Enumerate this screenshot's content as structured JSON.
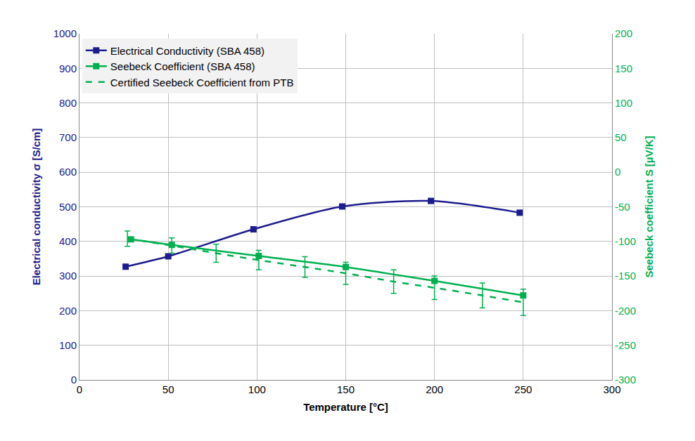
{
  "chart_data": {
    "type": "line",
    "x_label": "Temperature [°C]",
    "y_label": "Electrical conductivity σ [S/cm]",
    "y2_label": "Seebeck coefficient S [µV/K]",
    "xlim": [
      0,
      300
    ],
    "xticks": [
      0,
      50,
      100,
      150,
      200,
      250,
      300
    ],
    "ylim": [
      0,
      1000
    ],
    "yticks": [
      0,
      100,
      200,
      300,
      400,
      500,
      600,
      700,
      800,
      900,
      1000
    ],
    "y2lim": [
      -300,
      200
    ],
    "y2ticks": [
      -300,
      -250,
      -200,
      -150,
      -100,
      -50,
      0,
      50,
      100,
      150,
      200
    ],
    "grid": true,
    "legend": "upper left",
    "series": [
      {
        "name": "Electrical Conductivity (SBA 458)",
        "color": "#1c1c8c",
        "marker": "square",
        "line_style": "solid",
        "x": [
          26,
          50,
          98,
          148,
          198,
          248
        ],
        "values": [
          327,
          357,
          435,
          501,
          517,
          483
        ]
      },
      {
        "name": "Seebeck Coefficient (SBA 458)",
        "color": "#00b050",
        "marker": "square",
        "line_style": "solid",
        "axis": "y2",
        "x": [
          29,
          52,
          101,
          150,
          200,
          250
        ],
        "values": [
          -97,
          -105,
          -121,
          -137,
          -157,
          -178
        ]
      },
      {
        "name": "Certified Seebeck Coefficient from PTB",
        "color": "#00b050",
        "marker": "none",
        "line_style": "dashed",
        "axis": "y2",
        "x": [
          27,
          52,
          77,
          101,
          127,
          150,
          177,
          200,
          227,
          250
        ],
        "values": [
          -96,
          -106,
          -117,
          -127,
          -137,
          -146,
          -158,
          -167,
          -178,
          -188
        ],
        "errors": [
          11,
          11,
          13,
          14,
          15,
          16,
          17,
          17,
          18,
          19
        ]
      }
    ]
  }
}
